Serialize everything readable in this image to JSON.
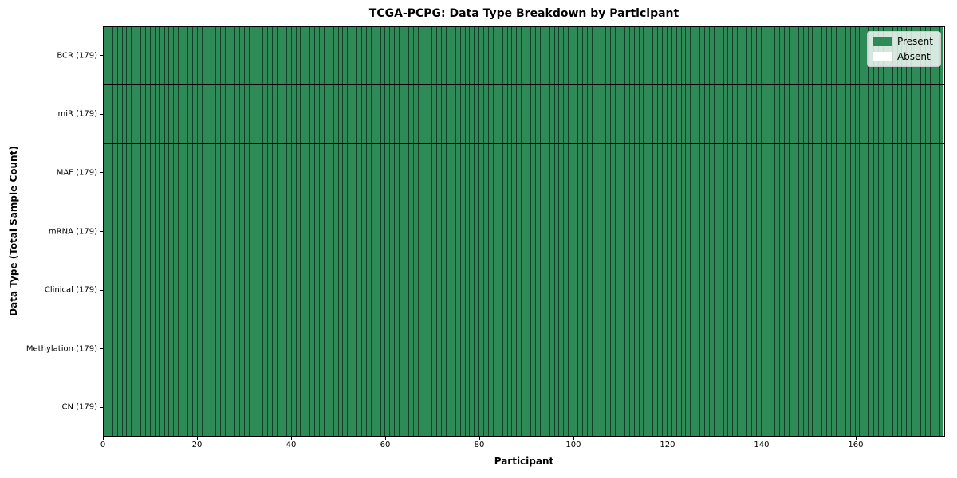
{
  "chart_data": {
    "type": "heatmap",
    "title": "TCGA-PCPG: Data Type Breakdown by Participant",
    "xlabel": "Participant",
    "ylabel": "Data Type (Total Sample Count)",
    "n_participants": 179,
    "xlim": [
      0,
      179
    ],
    "x_ticks": [
      0,
      20,
      40,
      60,
      80,
      100,
      120,
      140,
      160
    ],
    "rows": [
      {
        "label": "BCR (179)",
        "present_count": 179
      },
      {
        "label": "miR (179)",
        "present_count": 179
      },
      {
        "label": "MAF (179)",
        "present_count": 179
      },
      {
        "label": "mRNA (179)",
        "present_count": 179
      },
      {
        "label": "Clinical (179)",
        "present_count": 179
      },
      {
        "label": "Methylation (179)",
        "present_count": 179
      },
      {
        "label": "CN (179)",
        "present_count": 179
      }
    ],
    "legend": [
      {
        "label": "Present",
        "color": "#2e8b57"
      },
      {
        "label": "Absent",
        "color": "#ffffff"
      }
    ],
    "colors": {
      "present": "#2e8b57",
      "absent": "#ffffff",
      "cell_border": "rgba(0,0,0,0.55)",
      "row_separator": "#000000",
      "axis": "#000000"
    },
    "legend_position": "upper right",
    "grid": "cell-edges"
  }
}
